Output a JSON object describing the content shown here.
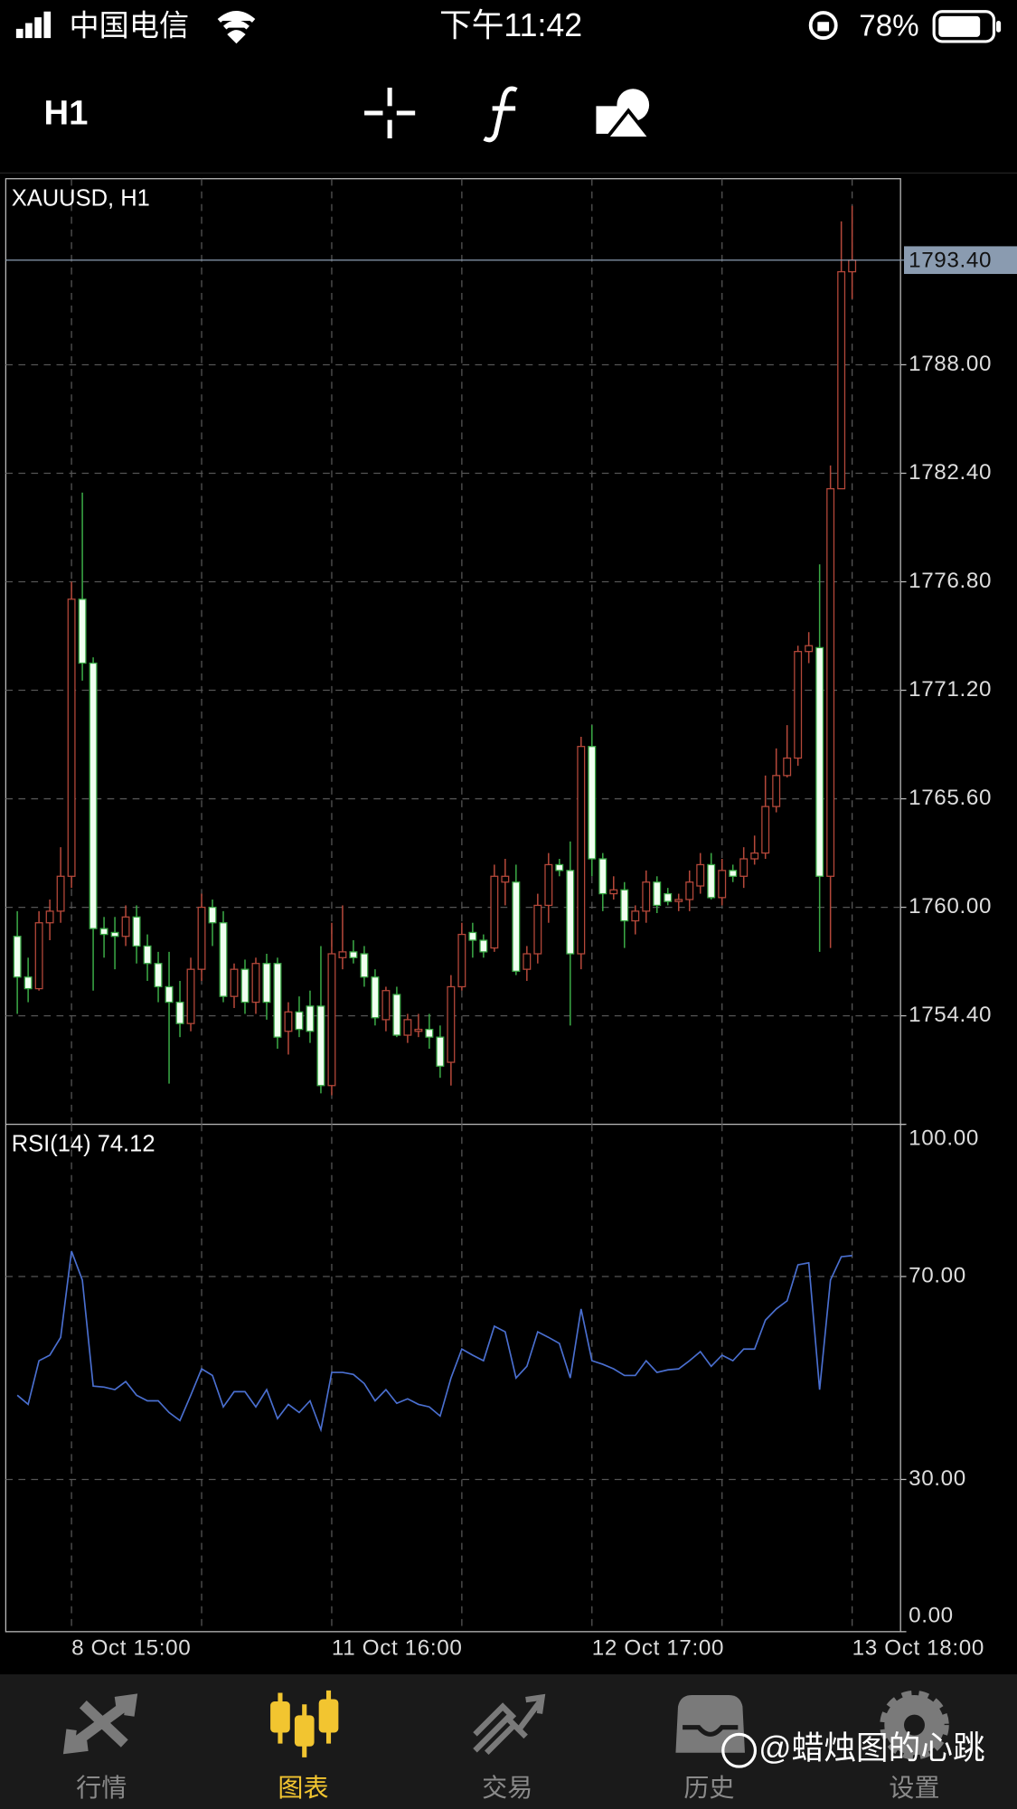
{
  "status_bar": {
    "carrier": "中国电信",
    "time": "下午11:42",
    "battery": "78%"
  },
  "toolbar": {
    "timeframe": "H1"
  },
  "chart_data": [
    {
      "type": "candlestick",
      "title": "XAUUSD, H1",
      "categories": [
        null,
        null,
        null,
        null,
        null,
        "8 Oct 15:00",
        null,
        null,
        null,
        null,
        null,
        null,
        null,
        null,
        null,
        null,
        null,
        null,
        null,
        null,
        null,
        null,
        null,
        null,
        null,
        null,
        null,
        null,
        null,
        "11 Oct 16:00",
        null,
        null,
        null,
        null,
        null,
        null,
        null,
        null,
        null,
        null,
        null,
        null,
        null,
        null,
        null,
        null,
        null,
        null,
        null,
        null,
        null,
        null,
        null,
        "12 Oct 17:00",
        null,
        null,
        null,
        null,
        null,
        null,
        null,
        null,
        null,
        null,
        null,
        null,
        null,
        null,
        null,
        null,
        null,
        null,
        null,
        null,
        null,
        null,
        null,
        "13 Oct 18:00"
      ],
      "open": [
        1758.5,
        1756.4,
        1755.8,
        1759.2,
        1759.8,
        1761.6,
        1775.9,
        1772.6,
        1758.9,
        1758.7,
        1758.5,
        1759.5,
        1758.0,
        1757.1,
        1755.9,
        1755.1,
        1754.0,
        1756.8,
        1760.0,
        1759.2,
        1755.4,
        1756.8,
        1755.1,
        1757.1,
        1757.1,
        1753.6,
        1754.6,
        1754.9,
        1754.9,
        1750.8,
        1757.4,
        1757.7,
        1757.6,
        1756.4,
        1754.2,
        1755.5,
        1753.4,
        1753.6,
        1753.7,
        1753.3,
        1752.0,
        1755.9,
        1758.7,
        1758.3,
        1757.9,
        1761.3,
        1761.3,
        1756.8,
        1757.6,
        1760.1,
        1762.2,
        1761.9,
        1757.6,
        1768.3,
        1762.5,
        1760.7,
        1760.9,
        1759.3,
        1759.8,
        1761.3,
        1760.7,
        1760.3,
        1760.4,
        1761.1,
        1762.2,
        1760.5,
        1761.9,
        1761.6,
        1762.5,
        1762.8,
        1765.2,
        1766.8,
        1767.7,
        1773.2,
        1773.4,
        1761.6,
        1781.6,
        1792.8
      ],
      "high": [
        1759.8,
        1757.4,
        1759.8,
        1760.4,
        1763.1,
        1776.8,
        1781.4,
        1772.9,
        1759.5,
        1759.5,
        1760.1,
        1760.1,
        1758.6,
        1757.7,
        1757.7,
        1756.2,
        1757.4,
        1760.7,
        1760.4,
        1759.8,
        1757.1,
        1757.3,
        1757.4,
        1757.6,
        1757.4,
        1755.1,
        1755.4,
        1755.7,
        1758.0,
        1759.2,
        1760.1,
        1758.3,
        1758.0,
        1756.8,
        1755.9,
        1755.9,
        1754.5,
        1754.5,
        1754.5,
        1753.9,
        1756.5,
        1759.2,
        1759.2,
        1758.6,
        1762.2,
        1762.5,
        1762.2,
        1758.0,
        1760.7,
        1762.8,
        1762.5,
        1763.4,
        1768.8,
        1769.4,
        1762.8,
        1761.6,
        1761.3,
        1760.1,
        1761.9,
        1761.6,
        1761.0,
        1760.7,
        1761.9,
        1762.8,
        1762.8,
        1762.5,
        1762.2,
        1763.1,
        1763.7,
        1766.8,
        1768.2,
        1769.4,
        1773.5,
        1774.2,
        1777.7,
        1782.8,
        1795.4,
        1796.2
      ],
      "low": [
        1754.5,
        1755.1,
        1755.7,
        1758.3,
        1759.2,
        1761.0,
        1771.7,
        1755.7,
        1757.4,
        1756.8,
        1758.0,
        1757.1,
        1756.2,
        1755.1,
        1750.9,
        1753.3,
        1753.6,
        1756.2,
        1758.0,
        1755.1,
        1754.8,
        1754.5,
        1754.5,
        1754.2,
        1752.7,
        1752.4,
        1753.3,
        1753.0,
        1750.4,
        1750.3,
        1756.8,
        1757.1,
        1755.9,
        1753.9,
        1753.6,
        1753.3,
        1753.0,
        1753.3,
        1752.7,
        1751.2,
        1750.8,
        1755.7,
        1757.4,
        1757.4,
        1757.7,
        1760.1,
        1756.5,
        1756.2,
        1757.1,
        1759.2,
        1761.6,
        1753.9,
        1756.8,
        1761.6,
        1759.8,
        1760.4,
        1757.9,
        1758.6,
        1759.2,
        1759.7,
        1760.1,
        1759.8,
        1759.8,
        1760.7,
        1760.4,
        1760.1,
        1761.3,
        1761.0,
        1762.2,
        1762.5,
        1764.9,
        1766.7,
        1767.3,
        1772.6,
        1757.7,
        1757.9,
        1781.6,
        1791.4
      ],
      "close": [
        1756.4,
        1755.8,
        1759.2,
        1759.8,
        1761.6,
        1775.9,
        1772.6,
        1758.9,
        1758.6,
        1758.5,
        1759.5,
        1758.0,
        1757.1,
        1755.9,
        1755.1,
        1754.0,
        1756.8,
        1760.0,
        1759.2,
        1755.4,
        1756.8,
        1755.1,
        1757.1,
        1755.1,
        1753.3,
        1754.6,
        1753.7,
        1753.6,
        1750.8,
        1757.6,
        1757.7,
        1757.4,
        1756.4,
        1754.3,
        1755.7,
        1753.4,
        1754.2,
        1753.7,
        1753.3,
        1751.8,
        1755.9,
        1758.6,
        1758.3,
        1757.7,
        1761.6,
        1761.6,
        1756.7,
        1757.6,
        1760.1,
        1762.2,
        1761.9,
        1757.6,
        1768.3,
        1762.5,
        1760.7,
        1760.9,
        1759.3,
        1759.8,
        1761.3,
        1760.1,
        1760.3,
        1760.4,
        1761.3,
        1762.2,
        1760.5,
        1761.9,
        1761.6,
        1762.5,
        1762.8,
        1765.2,
        1766.8,
        1767.7,
        1773.2,
        1773.5,
        1761.6,
        1781.6,
        1792.8,
        1793.4
      ],
      "up_color": "#b5483a",
      "down_color": "#3aa845",
      "down_fill": "#f0fff0",
      "ylim": [
        1748.8,
        1797.6
      ],
      "yticks": [
        {
          "value": 1754.4,
          "label": "1754.40"
        },
        {
          "value": 1760,
          "label": "1760.00"
        },
        {
          "value": 1765.6,
          "label": "1765.60"
        },
        {
          "value": 1771.2,
          "label": "1771.20"
        },
        {
          "value": 1776.8,
          "label": "1776.80"
        },
        {
          "value": 1782.4,
          "label": "1782.40"
        },
        {
          "value": 1788,
          "label": "1788.00"
        }
      ],
      "current_price": {
        "value": 1793.4,
        "label": "1793.40"
      },
      "grid": true
    },
    {
      "type": "line",
      "title": "RSI(14) 74.12",
      "color": "#4a6fd0",
      "values": [
        46.6,
        44.8,
        53.4,
        54.5,
        58.0,
        75.0,
        69.3,
        48.4,
        48.2,
        47.7,
        49.3,
        46.6,
        45.5,
        45.5,
        43.2,
        41.6,
        46.6,
        51.8,
        50.5,
        44.3,
        47.3,
        47.3,
        44.3,
        47.7,
        42.0,
        44.8,
        43.2,
        45.5,
        39.8,
        51.1,
        51.1,
        50.7,
        48.9,
        45.5,
        47.7,
        45.0,
        45.9,
        44.8,
        44.3,
        42.5,
        50.0,
        55.7,
        54.5,
        53.4,
        60.2,
        59.1,
        50.0,
        52.3,
        59.1,
        58.0,
        56.8,
        50.0,
        63.6,
        53.4,
        52.7,
        51.8,
        50.5,
        50.5,
        53.4,
        51.1,
        51.6,
        51.8,
        53.4,
        55.2,
        52.3,
        54.5,
        53.4,
        55.7,
        55.7,
        61.4,
        63.6,
        65.2,
        72.3,
        72.7,
        47.7,
        69.3,
        73.9,
        74.12
      ],
      "ylim": [
        0,
        100
      ],
      "yticks": [
        {
          "value": 0,
          "label": "0.00"
        },
        {
          "value": 30,
          "label": "30.00"
        },
        {
          "value": 70,
          "label": "70.00"
        },
        {
          "value": 100,
          "label": "100.00"
        }
      ],
      "grid": true
    }
  ],
  "tab_bar": {
    "tabs": [
      "行情",
      "图表",
      "交易",
      "历史",
      "设置"
    ],
    "active": 1
  },
  "watermark": "@蜡烛图的心跳"
}
